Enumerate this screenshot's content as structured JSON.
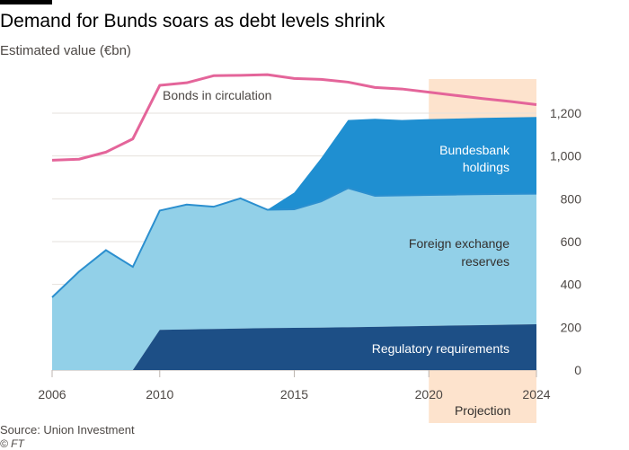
{
  "header": {
    "title": "Demand for Bunds soars as debt levels shrink",
    "subtitle": "Estimated value (€bn)"
  },
  "footer": {
    "source": "Source: Union Investment",
    "credit": "© FT"
  },
  "colors": {
    "bonds_line": "#e4659a",
    "bundesbank": "#1f8fd1",
    "foreign_fx": "#92d0e8",
    "foreign_fx_line": "#2b8fcf",
    "regulatory": "#1d4f86",
    "projection": "#fde3cd",
    "grid": "#e6e1dc"
  },
  "chart_data": {
    "type": "area",
    "title": "Demand for Bunds soars as debt levels shrink",
    "subtitle": "Estimated value (€bn)",
    "x": [
      2006,
      2007,
      2008,
      2009,
      2010,
      2011,
      2012,
      2013,
      2014,
      2015,
      2016,
      2017,
      2018,
      2019,
      2020,
      2021,
      2022,
      2023,
      2024
    ],
    "x_ticks": [
      "2006",
      "2010",
      "2015",
      "2020",
      "2024"
    ],
    "y_ticks": [
      "0",
      "200",
      "400",
      "600",
      "800",
      "1,000",
      "1,200"
    ],
    "ylim": [
      0,
      1300
    ],
    "xlim": [
      2006,
      2024
    ],
    "grid": true,
    "series": [
      {
        "name": "Bonds in circulation",
        "kind": "line",
        "values": [
          980,
          985,
          1018,
          1080,
          1330,
          1342,
          1375,
          1377,
          1380,
          1362,
          1358,
          1345,
          1320,
          1313,
          1298,
          1283,
          1268,
          1255,
          1240
        ]
      },
      {
        "name": "Regulatory requirements",
        "kind": "stacked-area",
        "values": [
          0,
          0,
          0,
          0,
          188,
          190,
          192,
          194,
          196,
          197,
          198,
          200,
          202,
          204,
          206,
          208,
          210,
          212,
          214
        ]
      },
      {
        "name": "Foreign exchange reserves",
        "kind": "stacked-area",
        "values": [
          340,
          460,
          560,
          482,
          557,
          583,
          571,
          608,
          553,
          554,
          590,
          650,
          612,
          612,
          612,
          612,
          612,
          611,
          610
        ]
      },
      {
        "name": "Bundesbank holdings",
        "kind": "stacked-area",
        "values": [
          0,
          0,
          0,
          0,
          0,
          0,
          0,
          0,
          0,
          78,
          202,
          318,
          360,
          352,
          354,
          355,
          356,
          357,
          358
        ]
      }
    ],
    "series_labels": {
      "bonds": "Bonds in circulation",
      "bundesbank_line1": "Bundesbank",
      "bundesbank_line2": "holdings",
      "fx_line1": "Foreign exchange",
      "fx_line2": "reserves",
      "regulatory": "Regulatory requirements"
    },
    "projection": {
      "label": "Projection",
      "from": 2020,
      "to": 2024
    }
  }
}
